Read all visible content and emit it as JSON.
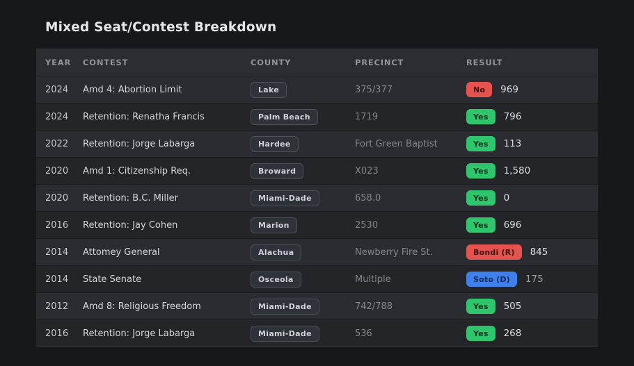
{
  "title": "Mixed Seat/Contest Breakdown",
  "table": {
    "columns": [
      "YEAR",
      "CONTEST",
      "COUNTY",
      "PRECINCT",
      "RESULT"
    ],
    "rows": [
      {
        "year": "2024",
        "contest": "Amd 4: Abortion Limit",
        "county": "Lake",
        "precinct": "375/377",
        "result": {
          "label": "No",
          "type": "no"
        },
        "value": "969"
      },
      {
        "year": "2024",
        "contest": "Retention: Renatha Francis",
        "county": "Palm Beach",
        "precinct": "1719",
        "result": {
          "label": "Yes",
          "type": "yes"
        },
        "value": "796"
      },
      {
        "year": "2022",
        "contest": "Retention: Jorge Labarga",
        "county": "Hardee",
        "precinct": "Fort Green Baptist",
        "result": {
          "label": "Yes",
          "type": "yes"
        },
        "value": "113"
      },
      {
        "year": "2020",
        "contest": "Amd 1: Citizenship Req.",
        "county": "Broward",
        "precinct": "X023",
        "result": {
          "label": "Yes",
          "type": "yes"
        },
        "value": "1,580"
      },
      {
        "year": "2020",
        "contest": "Retention: B.C. Miller",
        "county": "Miami-Dade",
        "precinct": "658.0",
        "result": {
          "label": "Yes",
          "type": "yes"
        },
        "value": "0"
      },
      {
        "year": "2016",
        "contest": "Retention: Jay Cohen",
        "county": "Marion",
        "precinct": "2530",
        "result": {
          "label": "Yes",
          "type": "yes"
        },
        "value": "696"
      },
      {
        "year": "2014",
        "contest": "Attomey General",
        "county": "Alachua",
        "precinct": "Newberry Fire St.",
        "result": {
          "label": "Bondi (R)",
          "type": "rep"
        },
        "value": "845"
      },
      {
        "year": "2014",
        "contest": "State Senate",
        "county": "Osceola",
        "precinct": "Multiple",
        "result": {
          "label": "Soto (D)",
          "type": "dem"
        },
        "value": "175",
        "value_muted": true
      },
      {
        "year": "2012",
        "contest": "Amd 8: Religious Freedom",
        "county": "Miami-Dade",
        "precinct": "742/788",
        "result": {
          "label": "Yes",
          "type": "yes"
        },
        "value": "505"
      },
      {
        "year": "2016",
        "contest": "Retention: Jorge Labarga",
        "county": "Miami-Dade",
        "precinct": "536",
        "result": {
          "label": "Yes",
          "type": "yes"
        },
        "value": "268"
      }
    ]
  },
  "colors": {
    "badge_yes": "#2fc56c",
    "badge_no": "#e5534e",
    "badge_rep": "#e5534e",
    "badge_dem": "#3f80ea",
    "page_background": "#17181c",
    "header_background": "#2b2d32"
  }
}
